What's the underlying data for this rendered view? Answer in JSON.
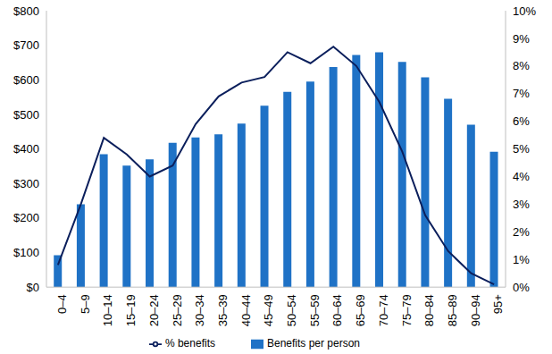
{
  "chart_data": {
    "type": "bar",
    "categories": [
      "0–4",
      "5–9",
      "10–14",
      "15–19",
      "20–24",
      "25–29",
      "30–34",
      "35–39",
      "40–44",
      "45–49",
      "50–54",
      "55–59",
      "60–64",
      "65–69",
      "70–74",
      "75–79",
      "80–84",
      "85–89",
      "90–94",
      "95+"
    ],
    "series": [
      {
        "name": "Benefits per person",
        "type": "bar",
        "color": "#1f72c6",
        "values": [
          92,
          240,
          385,
          352,
          370,
          418,
          433,
          442,
          473,
          525,
          565,
          595,
          637,
          672,
          680,
          652,
          607,
          545,
          470,
          392
        ]
      },
      {
        "name": "% benefits",
        "type": "line",
        "color": "#0b1f5c",
        "axis": "y2",
        "values": [
          0.8,
          3.0,
          5.4,
          4.8,
          4.0,
          4.4,
          5.9,
          6.9,
          7.4,
          7.6,
          8.5,
          8.1,
          8.7,
          8.0,
          6.7,
          4.9,
          2.6,
          1.3,
          0.5,
          0.1
        ]
      }
    ],
    "ylim": [
      0,
      800
    ],
    "yticks": [
      {
        "value": 0,
        "label": "$0"
      },
      {
        "value": 100,
        "label": "$100"
      },
      {
        "value": 200,
        "label": "$200"
      },
      {
        "value": 300,
        "label": "$300"
      },
      {
        "value": 400,
        "label": "$400"
      },
      {
        "value": 500,
        "label": "$500"
      },
      {
        "value": 600,
        "label": "$600"
      },
      {
        "value": 700,
        "label": "$700"
      },
      {
        "value": 800,
        "label": "$800"
      }
    ],
    "y2lim": [
      0,
      10
    ],
    "y2ticks": [
      {
        "value": 0,
        "label": "0%"
      },
      {
        "value": 1,
        "label": "1%"
      },
      {
        "value": 2,
        "label": "2%"
      },
      {
        "value": 3,
        "label": "3%"
      },
      {
        "value": 4,
        "label": "4%"
      },
      {
        "value": 5,
        "label": "5%"
      },
      {
        "value": 6,
        "label": "6%"
      },
      {
        "value": 7,
        "label": "7%"
      },
      {
        "value": 8,
        "label": "8%"
      },
      {
        "value": 9,
        "label": "9%"
      },
      {
        "value": 10,
        "label": "10%"
      }
    ],
    "grid": false,
    "legend": "bottom"
  }
}
